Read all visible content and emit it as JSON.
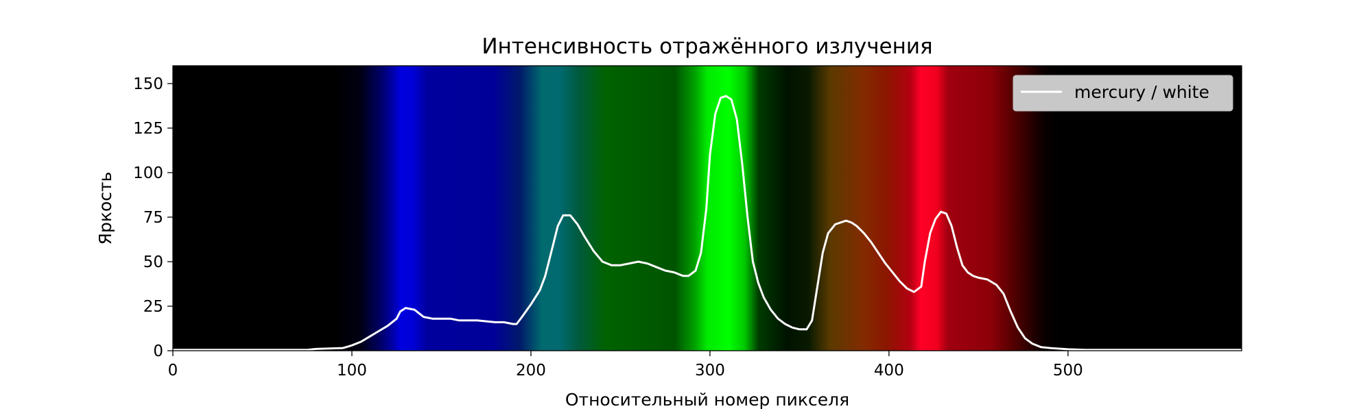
{
  "chart_data": {
    "type": "line",
    "title": "Интенсивность отражённого излучения",
    "xlabel": "Относительный номер пикселя",
    "ylabel": "Яркость",
    "xlim": [
      0,
      597
    ],
    "ylim": [
      0,
      160
    ],
    "xticks": [
      0,
      100,
      200,
      300,
      400,
      500
    ],
    "yticks": [
      0,
      25,
      50,
      75,
      100,
      125,
      150
    ],
    "grid": false,
    "legend_position": "top-right",
    "background": "visible light spectrum image (dark → blue → cyan → green → orange → red → dark)",
    "line_color": "#ffffff",
    "series": [
      {
        "name": "mercury / white",
        "x": [
          0,
          75,
          80,
          95,
          100,
          105,
          110,
          115,
          120,
          125,
          127,
          130,
          135,
          140,
          145,
          150,
          155,
          160,
          170,
          180,
          185,
          190,
          192,
          195,
          200,
          205,
          208,
          212,
          215,
          218,
          222,
          226,
          230,
          235,
          240,
          245,
          250,
          255,
          260,
          265,
          270,
          275,
          280,
          285,
          288,
          292,
          295,
          298,
          300,
          303,
          306,
          309,
          312,
          315,
          318,
          321,
          324,
          327,
          330,
          334,
          338,
          342,
          346,
          350,
          354,
          357,
          360,
          363,
          366,
          370,
          373,
          376,
          379,
          382,
          386,
          390,
          394,
          398,
          402,
          406,
          410,
          414,
          418,
          420,
          423,
          426,
          429,
          432,
          435,
          438,
          441,
          444,
          447,
          450,
          455,
          460,
          464,
          468,
          472,
          476,
          480,
          485,
          490,
          500,
          510,
          597
        ],
        "y": [
          0.5,
          0.5,
          1,
          1.5,
          3,
          5,
          8,
          11,
          14,
          18,
          22,
          24,
          23,
          19,
          18,
          18,
          18,
          17,
          17,
          16,
          16,
          15,
          15,
          19,
          26,
          34,
          42,
          58,
          70,
          76,
          76,
          71,
          64,
          56,
          50,
          48,
          48,
          49,
          50,
          49,
          47,
          45,
          44,
          42,
          42,
          45,
          55,
          80,
          110,
          133,
          142,
          143,
          141,
          130,
          105,
          75,
          50,
          38,
          30,
          23,
          18,
          15,
          13,
          12,
          12,
          17,
          36,
          55,
          66,
          71,
          72,
          73,
          72,
          70,
          66,
          61,
          55,
          49,
          44,
          39,
          35,
          33,
          36,
          50,
          66,
          74,
          78,
          77,
          70,
          58,
          48,
          44,
          42,
          41,
          40,
          37,
          32,
          22,
          13,
          7,
          4,
          2,
          1.5,
          0.8,
          0.5,
          0.5
        ]
      }
    ]
  }
}
